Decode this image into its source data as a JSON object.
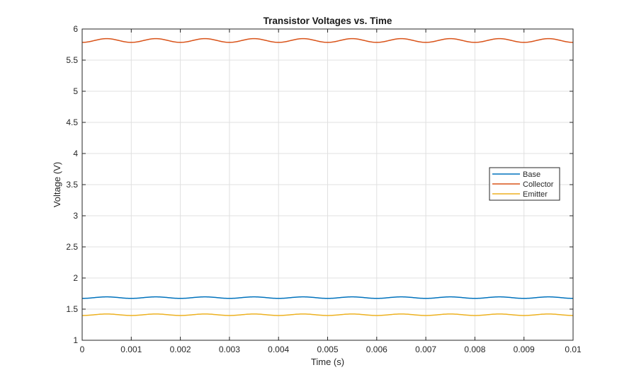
{
  "chart_data": {
    "type": "line",
    "title": "Transistor Voltages vs. Time",
    "xlabel": "Time (s)",
    "ylabel": "Voltage (V)",
    "xlim": [
      0,
      0.01
    ],
    "ylim": [
      1,
      6
    ],
    "xticks": [
      "0",
      "0.001",
      "0.002",
      "0.003",
      "0.004",
      "0.005",
      "0.006",
      "0.007",
      "0.008",
      "0.009",
      "0.01"
    ],
    "yticks": [
      "1",
      "1.5",
      "2",
      "2.5",
      "3",
      "3.5",
      "4",
      "4.5",
      "5",
      "5.5",
      "6"
    ],
    "grid": true,
    "legend_position": "right",
    "series": [
      {
        "name": "Base",
        "color": "#0072BD",
        "offset": 1.685,
        "amplitude": 0.012,
        "frequency_hz": 1000
      },
      {
        "name": "Collector",
        "color": "#D95319",
        "offset": 5.815,
        "amplitude": 0.03,
        "frequency_hz": 1000
      },
      {
        "name": "Emitter",
        "color": "#EDB120",
        "offset": 1.41,
        "amplitude": 0.012,
        "frequency_hz": 1000
      }
    ]
  }
}
